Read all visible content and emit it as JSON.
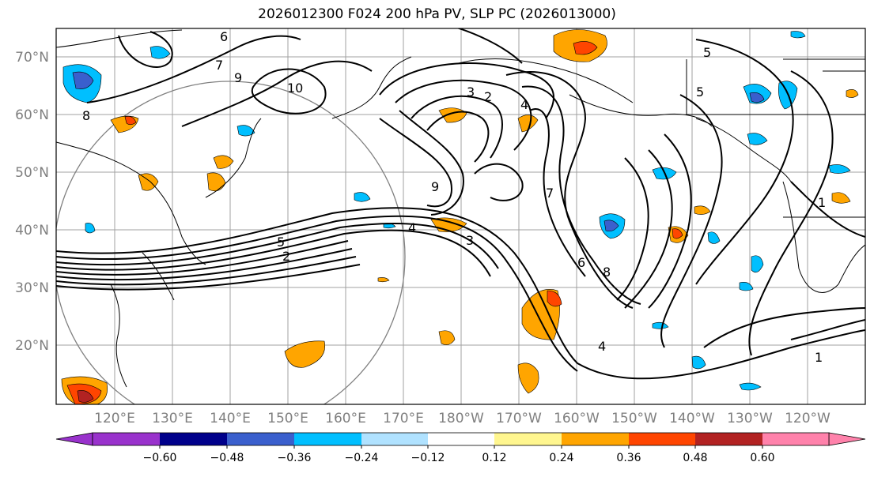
{
  "title": "2026012300 F024 200 hPa PV, SLP PC (2026013000)",
  "lat_labels": [
    "70°N",
    "60°N",
    "50°N",
    "40°N",
    "30°N",
    "20°N"
  ],
  "lon_labels": [
    "120°E",
    "130°E",
    "140°E",
    "150°E",
    "160°E",
    "170°E",
    "180°W",
    "170°W",
    "160°W",
    "150°W",
    "140°W",
    "130°W",
    "120°W"
  ],
  "colorbar": {
    "tick_labels": [
      "−0.60",
      "−0.48",
      "−0.36",
      "−0.24",
      "−0.12",
      "0.12",
      "0.24",
      "0.36",
      "0.48",
      "0.60"
    ],
    "colors": [
      "#9932cc",
      "#00008b",
      "#3a5fcd",
      "#00bfff",
      "#b0e2ff",
      "#ffffff",
      "#fff68f",
      "#ffa500",
      "#ff4500",
      "#b22222",
      "#ff82ab"
    ]
  },
  "contour_labels": [
    "8",
    "7",
    "9",
    "10",
    "6",
    "3",
    "2",
    "4",
    "1",
    "5",
    "7",
    "9",
    "4",
    "3",
    "5",
    "2",
    "1",
    "6",
    "8",
    "4",
    "5"
  ]
}
